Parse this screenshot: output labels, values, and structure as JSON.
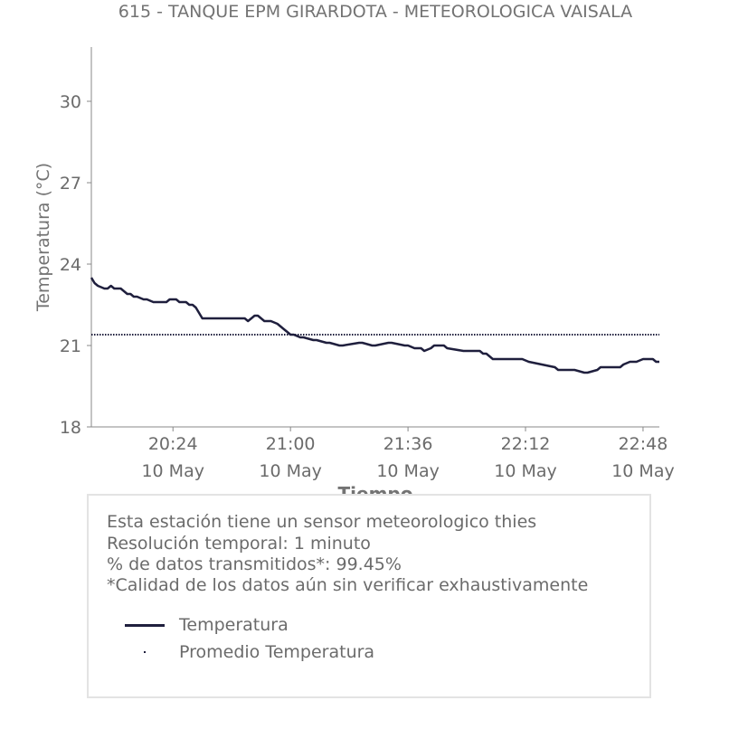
{
  "title": "615 - TANQUE EPM GIRARDOTA - METEOROLOGICA VAISALA",
  "chart_data": {
    "type": "line",
    "title": "615 - TANQUE EPM GIRARDOTA - METEOROLOGICA VAISALA",
    "xlabel": "Tiempo",
    "ylabel": "Temperatura (°C)",
    "x_range": [
      "2020-05-10 19:59",
      "2020-05-10 22:53"
    ],
    "xlim_minutes": [
      1199,
      1373
    ],
    "ylim": [
      18,
      32
    ],
    "yticks": [
      18,
      21,
      24,
      27,
      30
    ],
    "xticks": [
      {
        "minute": 1224,
        "time": "20:24",
        "date": "10 May"
      },
      {
        "minute": 1260,
        "time": "21:00",
        "date": "10 May"
      },
      {
        "minute": 1296,
        "time": "21:36",
        "date": "10 May"
      },
      {
        "minute": 1332,
        "time": "22:12",
        "date": "10 May"
      },
      {
        "minute": 1368,
        "time": "22:48",
        "date": "10 May"
      }
    ],
    "grid": false,
    "series": [
      {
        "name": "Temperatura",
        "color": "#1f1f3d",
        "style": "solid",
        "minutes": [
          1199,
          1200,
          1201,
          1203,
          1204,
          1205,
          1206,
          1208,
          1210,
          1211,
          1212,
          1213,
          1215,
          1216,
          1218,
          1220,
          1221,
          1222,
          1223,
          1225,
          1226,
          1228,
          1229,
          1230,
          1231,
          1232,
          1233,
          1235,
          1236,
          1237,
          1238,
          1240,
          1242,
          1244,
          1246,
          1247,
          1248,
          1249,
          1250,
          1251,
          1252,
          1253,
          1254,
          1256,
          1257,
          1258,
          1259,
          1260,
          1261,
          1263,
          1264,
          1267,
          1268,
          1271,
          1272,
          1275,
          1276,
          1281,
          1282,
          1285,
          1286,
          1290,
          1291,
          1295,
          1296,
          1298,
          1299,
          1300,
          1301,
          1303,
          1304,
          1307,
          1308,
          1313,
          1314,
          1318,
          1319,
          1320,
          1322,
          1323,
          1328,
          1331,
          1333,
          1341,
          1342,
          1343,
          1344,
          1346,
          1347,
          1350,
          1351,
          1354,
          1355,
          1357,
          1358,
          1359,
          1361,
          1362,
          1364,
          1366,
          1368,
          1369,
          1370,
          1371,
          1372,
          1373
        ],
        "values": [
          23.5,
          23.3,
          23.2,
          23.1,
          23.1,
          23.2,
          23.1,
          23.1,
          22.9,
          22.9,
          22.8,
          22.8,
          22.7,
          22.7,
          22.6,
          22.6,
          22.6,
          22.6,
          22.7,
          22.7,
          22.6,
          22.6,
          22.5,
          22.5,
          22.4,
          22.2,
          22.0,
          22.0,
          22.0,
          22.0,
          22.0,
          22.0,
          22.0,
          22.0,
          22.0,
          21.9,
          22.0,
          22.1,
          22.1,
          22.0,
          21.9,
          21.9,
          21.9,
          21.8,
          21.7,
          21.6,
          21.5,
          21.4,
          21.4,
          21.3,
          21.3,
          21.2,
          21.2,
          21.1,
          21.1,
          21.0,
          21.0,
          21.1,
          21.1,
          21.0,
          21.0,
          21.1,
          21.1,
          21.0,
          21.0,
          20.9,
          20.9,
          20.9,
          20.8,
          20.9,
          21.0,
          21.0,
          20.9,
          20.8,
          20.8,
          20.8,
          20.7,
          20.7,
          20.5,
          20.5,
          20.5,
          20.5,
          20.4,
          20.2,
          20.1,
          20.1,
          20.1,
          20.1,
          20.1,
          20.0,
          20.0,
          20.1,
          20.2,
          20.2,
          20.2,
          20.2,
          20.2,
          20.3,
          20.4,
          20.4,
          20.5,
          20.5,
          20.5,
          20.5,
          20.4,
          20.4
        ]
      },
      {
        "name": "Promedio Temperatura",
        "color": "#1f1f3d",
        "style": "dotted",
        "value": 21.4
      }
    ],
    "legend": {
      "placement": "bottom"
    }
  },
  "info": {
    "line1": "Esta estación tiene un sensor meteorologico thies",
    "line2": "Resolución temporal: 1 minuto",
    "line3": "% de datos transmitidos*: 99.45%",
    "line4": "*Calidad de los datos aún sin verificar exhaustivamente"
  },
  "legend": {
    "temp_label": "Temperatura",
    "avg_label": "Promedio Temperatura"
  }
}
